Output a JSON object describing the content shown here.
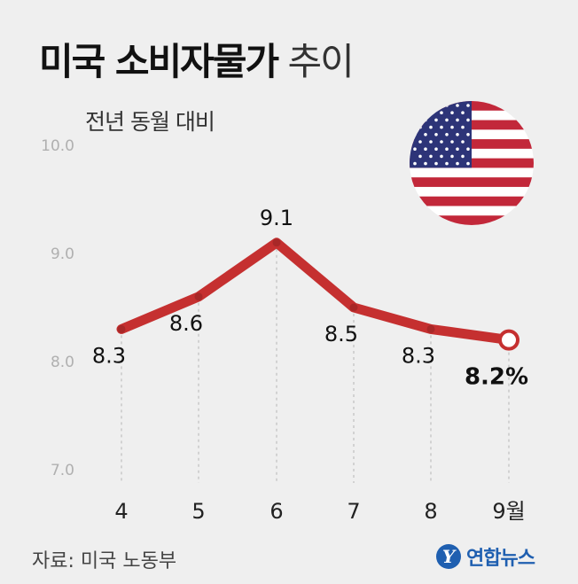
{
  "title": {
    "bold": "미국 소비자물가",
    "light": "추이"
  },
  "subtitle": "전년 동월 대비",
  "source": "자료: 미국 노동부",
  "logo": {
    "mark": "Y",
    "text": "연합뉴스"
  },
  "flag_icon": "us-flag-icon",
  "colors": {
    "line": "#c53030",
    "text": "#111111",
    "axis_text": "#b0b0b0",
    "grid": "#c8c8c8",
    "background": "#efefef"
  },
  "chart_data": {
    "type": "line",
    "categories": [
      "4",
      "5",
      "6",
      "7",
      "8",
      "9월"
    ],
    "values": [
      8.3,
      8.6,
      9.1,
      8.5,
      8.3,
      8.2
    ],
    "data_labels": [
      "8.3",
      "8.6",
      "9.1",
      "8.5",
      "8.3",
      "8.2%"
    ],
    "y_ticks": [
      "10.0",
      "9.0",
      "8.0",
      "7.0"
    ],
    "ylim": [
      7.0,
      10.0
    ],
    "grid": "vertical-dashed",
    "highlight_last": true
  }
}
